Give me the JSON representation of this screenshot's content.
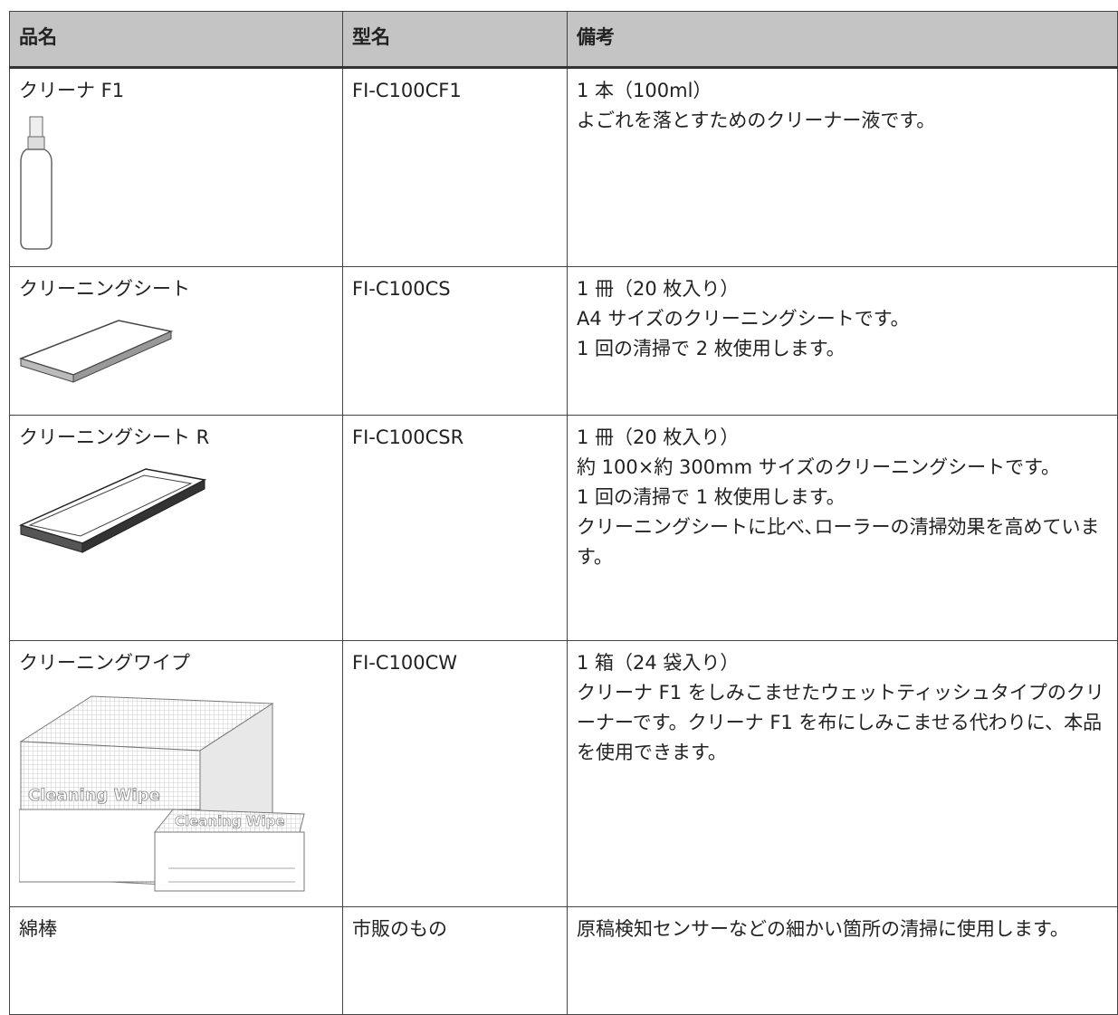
{
  "table": {
    "headers": [
      "品名",
      "型名",
      "備考"
    ],
    "rows": [
      {
        "name": "クリーナ F1",
        "model": "FI-C100CF1",
        "notes": [
          "1 本（100ml）",
          "よごれを落とすためのクリーナー液です。"
        ]
      },
      {
        "name": "クリーニングシート",
        "model": "FI-C100CS",
        "notes": [
          "1 冊（20 枚入り）",
          "A4 サイズのクリーニングシートです。",
          "1 回の清掃で 2 枚使用します。"
        ]
      },
      {
        "name": "クリーニングシート R",
        "model": "FI-C100CSR",
        "notes": [
          "1 冊（20 枚入り）",
          "約 100×約 300mm サイズのクリーニングシートです。",
          "1 回の清掃で 1 枚使用します。",
          "クリーニングシートに比べ､ローラーの清掃効果を高めています。"
        ]
      },
      {
        "name": "クリーニングワイプ",
        "model": "FI-C100CW",
        "notes": [
          "1 箱（24 袋入り）",
          "クリーナ F1 をしみこませたウェットティッシュタイプのクリーナーです。クリーナ F1 を布にしみこませる代わりに、本品を使用できます。"
        ],
        "image_text": "Cleaning Wipe"
      },
      {
        "name": "綿棒",
        "model": "市販のもの",
        "notes": [
          "原稿検知センサーなどの細かい箇所の清掃に使用します。"
        ]
      }
    ]
  }
}
